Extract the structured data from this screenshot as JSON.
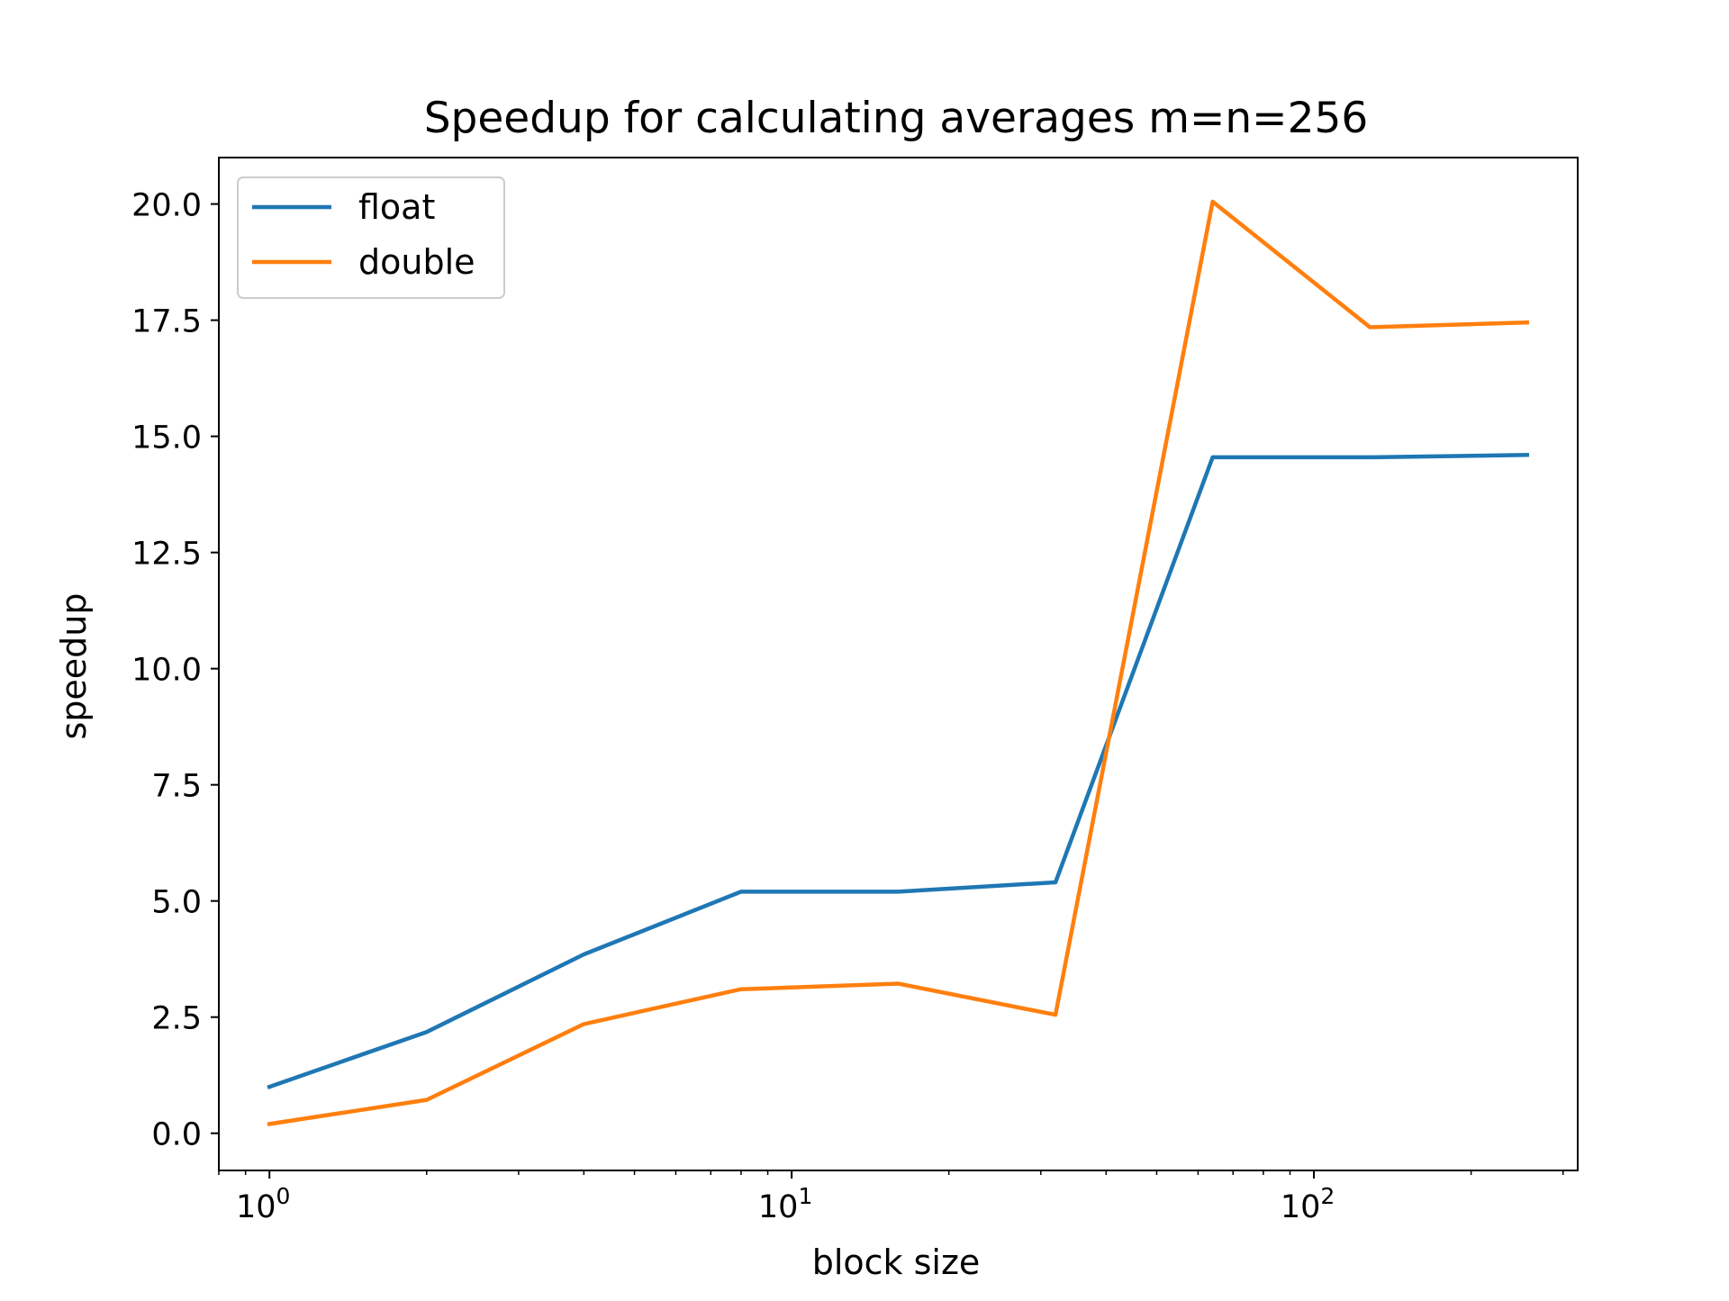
{
  "chart_data": {
    "type": "line",
    "title": "Speedup for calculating averages m=n=256",
    "xlabel": "block size",
    "ylabel": "speedup",
    "x_scale": "log",
    "xlim": [
      0.8,
      320
    ],
    "ylim": [
      -0.8,
      21
    ],
    "x": [
      1,
      2,
      4,
      8,
      16,
      32,
      64,
      128,
      256
    ],
    "series": [
      {
        "name": "float",
        "color": "#1f77b4",
        "values": [
          1.0,
          2.18,
          3.85,
          5.2,
          5.2,
          5.4,
          14.55,
          14.55,
          14.6
        ]
      },
      {
        "name": "double",
        "color": "#ff7f0e",
        "values": [
          0.2,
          0.72,
          2.35,
          3.1,
          3.22,
          2.55,
          20.05,
          17.35,
          17.45
        ]
      }
    ],
    "y_ticks": [
      {
        "value": 0,
        "label": "0.0"
      },
      {
        "value": 2.5,
        "label": "2.5"
      },
      {
        "value": 5,
        "label": "5.0"
      },
      {
        "value": 7.5,
        "label": "7.5"
      },
      {
        "value": 10,
        "label": "10.0"
      },
      {
        "value": 12.5,
        "label": "12.5"
      },
      {
        "value": 15,
        "label": "15.0"
      },
      {
        "value": 17.5,
        "label": "17.5"
      },
      {
        "value": 20,
        "label": "20.0"
      }
    ],
    "x_ticks": [
      {
        "value": 1,
        "base": "10",
        "exp": "0"
      },
      {
        "value": 10,
        "base": "10",
        "exp": "1"
      },
      {
        "value": 100,
        "base": "10",
        "exp": "2"
      }
    ],
    "legend_position": "upper-left",
    "grid": false
  }
}
